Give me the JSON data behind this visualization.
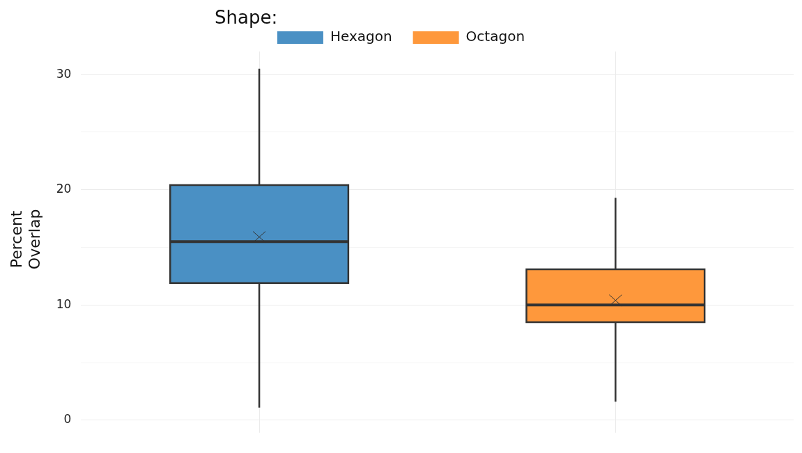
{
  "chart_data": {
    "type": "box",
    "ylabel": "Percent Overlap",
    "legend_title": "Shape:",
    "legend": "top",
    "grid": true,
    "tick_labels": "y",
    "categories": [
      null,
      null
    ],
    "ylim": [
      -0.6,
      32
    ],
    "yticks": [
      0,
      {
        "value": 5,
        "label": null
      },
      10,
      {
        "value": 15,
        "label": null
      },
      20,
      {
        "value": 25,
        "label": null
      },
      30
    ],
    "series": [
      {
        "name": "Hexagon",
        "color": "#4a90c4",
        "boxes": [
          {
            "low": 1.1,
            "q1": 11.9,
            "median": 15.5,
            "q3": 20.4,
            "high": 30.5,
            "mean": 15.9
          },
          null
        ]
      },
      {
        "name": "Octagon",
        "color": "#fe983c",
        "boxes": [
          null,
          {
            "low": 1.6,
            "q1": 8.5,
            "median": 10.0,
            "q3": 13.1,
            "high": 19.3,
            "mean": 10.4
          }
        ]
      }
    ]
  }
}
